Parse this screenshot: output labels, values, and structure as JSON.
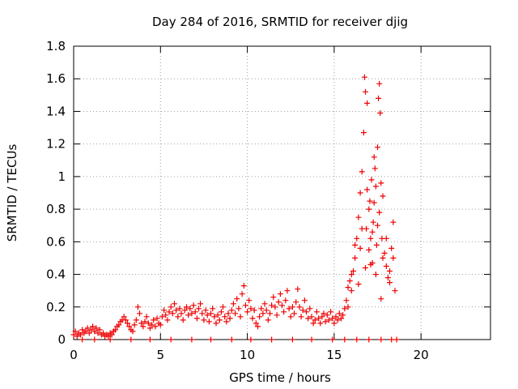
{
  "chart_data": {
    "type": "scatter",
    "title": "Day 284 of 2016, SRMTID for receiver djig",
    "xlabel": "GPS time / hours",
    "ylabel": "SRMTID / TECUs",
    "xlim": [
      0,
      24
    ],
    "ylim": [
      0,
      1.8
    ],
    "xticks": [
      0,
      5,
      10,
      15,
      20
    ],
    "yticks": [
      0,
      0.2,
      0.4,
      0.6,
      0.8,
      1,
      1.2,
      1.4,
      1.6,
      1.8
    ],
    "xtick_labels": [
      "0",
      "5",
      "10",
      "15",
      "20"
    ],
    "ytick_labels": [
      "0",
      "0.2",
      "0.4",
      "0.6",
      "0.8",
      "1",
      "1.2",
      "1.4",
      "1.6",
      "1.8"
    ],
    "grid": true,
    "marker": "+",
    "color": "#ee0000",
    "series": [
      {
        "name": "SRMTID",
        "points": [
          [
            0.0,
            0.03
          ],
          [
            0.1,
            0.05
          ],
          [
            0.2,
            0.02
          ],
          [
            0.3,
            0.04
          ],
          [
            0.4,
            0.03
          ],
          [
            0.5,
            0.06
          ],
          [
            0.6,
            0.04
          ],
          [
            0.7,
            0.05
          ],
          [
            0.8,
            0.07
          ],
          [
            0.9,
            0.04
          ],
          [
            1.0,
            0.06
          ],
          [
            1.1,
            0.08
          ],
          [
            1.2,
            0.05
          ],
          [
            1.3,
            0.07
          ],
          [
            1.4,
            0.04
          ],
          [
            1.5,
            0.06
          ],
          [
            1.6,
            0.03
          ],
          [
            1.7,
            0.04
          ],
          [
            1.8,
            0.02
          ],
          [
            1.9,
            0.03
          ],
          [
            2.0,
            0.02
          ],
          [
            2.1,
            0.04
          ],
          [
            2.2,
            0.03
          ],
          [
            2.3,
            0.05
          ],
          [
            2.4,
            0.06
          ],
          [
            2.5,
            0.08
          ],
          [
            2.6,
            0.09
          ],
          [
            2.7,
            0.11
          ],
          [
            2.8,
            0.12
          ],
          [
            2.9,
            0.14
          ],
          [
            3.0,
            0.12
          ],
          [
            3.1,
            0.1
          ],
          [
            3.2,
            0.08
          ],
          [
            3.3,
            0.06
          ],
          [
            3.4,
            0.05
          ],
          [
            3.5,
            0.09
          ],
          [
            3.6,
            0.12
          ],
          [
            3.7,
            0.2
          ],
          [
            3.8,
            0.16
          ],
          [
            3.9,
            0.1
          ],
          [
            4.0,
            0.08
          ],
          [
            4.1,
            0.11
          ],
          [
            4.2,
            0.14
          ],
          [
            4.3,
            0.1
          ],
          [
            4.4,
            0.07
          ],
          [
            4.5,
            0.09
          ],
          [
            4.6,
            0.12
          ],
          [
            4.7,
            0.08
          ],
          [
            4.8,
            0.13
          ],
          [
            4.9,
            0.1
          ],
          [
            5.0,
            0.09
          ],
          [
            5.1,
            0.14
          ],
          [
            5.2,
            0.18
          ],
          [
            5.3,
            0.15
          ],
          [
            5.4,
            0.12
          ],
          [
            5.5,
            0.17
          ],
          [
            5.6,
            0.2
          ],
          [
            5.7,
            0.16
          ],
          [
            5.8,
            0.22
          ],
          [
            5.9,
            0.18
          ],
          [
            6.0,
            0.14
          ],
          [
            6.1,
            0.19
          ],
          [
            6.2,
            0.16
          ],
          [
            6.3,
            0.12
          ],
          [
            6.4,
            0.18
          ],
          [
            6.5,
            0.2
          ],
          [
            6.6,
            0.15
          ],
          [
            6.7,
            0.19
          ],
          [
            6.8,
            0.16
          ],
          [
            6.9,
            0.21
          ],
          [
            7.0,
            0.17
          ],
          [
            7.1,
            0.13
          ],
          [
            7.2,
            0.19
          ],
          [
            7.3,
            0.22
          ],
          [
            7.4,
            0.16
          ],
          [
            7.5,
            0.12
          ],
          [
            7.6,
            0.18
          ],
          [
            7.7,
            0.15
          ],
          [
            7.8,
            0.11
          ],
          [
            7.9,
            0.16
          ],
          [
            8.0,
            0.19
          ],
          [
            8.1,
            0.14
          ],
          [
            8.2,
            0.1
          ],
          [
            8.3,
            0.15
          ],
          [
            8.4,
            0.12
          ],
          [
            8.5,
            0.17
          ],
          [
            8.6,
            0.2
          ],
          [
            8.7,
            0.14
          ],
          [
            8.8,
            0.11
          ],
          [
            8.9,
            0.16
          ],
          [
            9.0,
            0.13
          ],
          [
            9.1,
            0.18
          ],
          [
            9.2,
            0.22
          ],
          [
            9.3,
            0.16
          ],
          [
            9.4,
            0.25
          ],
          [
            9.5,
            0.19
          ],
          [
            9.6,
            0.14
          ],
          [
            9.7,
            0.28
          ],
          [
            9.8,
            0.33
          ],
          [
            9.9,
            0.21
          ],
          [
            10.0,
            0.17
          ],
          [
            10.1,
            0.24
          ],
          [
            10.2,
            0.19
          ],
          [
            10.3,
            0.13
          ],
          [
            10.4,
            0.18
          ],
          [
            10.5,
            0.1
          ],
          [
            10.6,
            0.08
          ],
          [
            10.7,
            0.14
          ],
          [
            10.8,
            0.19
          ],
          [
            10.9,
            0.16
          ],
          [
            11.0,
            0.22
          ],
          [
            11.1,
            0.18
          ],
          [
            11.2,
            0.12
          ],
          [
            11.3,
            0.16
          ],
          [
            11.4,
            0.21
          ],
          [
            11.5,
            0.26
          ],
          [
            11.6,
            0.2
          ],
          [
            11.7,
            0.15
          ],
          [
            11.8,
            0.23
          ],
          [
            11.9,
            0.28
          ],
          [
            12.0,
            0.21
          ],
          [
            12.1,
            0.17
          ],
          [
            12.2,
            0.24
          ],
          [
            12.3,
            0.3
          ],
          [
            12.4,
            0.19
          ],
          [
            12.5,
            0.14
          ],
          [
            12.6,
            0.2
          ],
          [
            12.7,
            0.16
          ],
          [
            12.8,
            0.23
          ],
          [
            12.9,
            0.31
          ],
          [
            13.0,
            0.2
          ],
          [
            13.1,
            0.14
          ],
          [
            13.2,
            0.18
          ],
          [
            13.3,
            0.24
          ],
          [
            13.4,
            0.17
          ],
          [
            13.5,
            0.13
          ],
          [
            13.6,
            0.19
          ],
          [
            13.7,
            0.14
          ],
          [
            13.8,
            0.1
          ],
          [
            13.9,
            0.12
          ],
          [
            14.0,
            0.17
          ],
          [
            14.1,
            0.13
          ],
          [
            14.2,
            0.1
          ],
          [
            14.3,
            0.14
          ],
          [
            14.4,
            0.16
          ],
          [
            14.5,
            0.11
          ],
          [
            14.6,
            0.15
          ],
          [
            14.7,
            0.12
          ],
          [
            14.8,
            0.17
          ],
          [
            14.9,
            0.13
          ],
          [
            15.0,
            0.1
          ],
          [
            15.1,
            0.14
          ],
          [
            15.2,
            0.12
          ],
          [
            15.3,
            0.16
          ],
          [
            15.4,
            0.13
          ],
          [
            15.5,
            0.15
          ],
          [
            15.6,
            0.19
          ],
          [
            15.7,
            0.24
          ],
          [
            15.8,
            0.32
          ],
          [
            15.9,
            0.36
          ],
          [
            16.0,
            0.3
          ],
          [
            16.1,
            0.42
          ],
          [
            16.2,
            0.5
          ],
          [
            16.3,
            0.62
          ],
          [
            16.4,
            0.75
          ],
          [
            16.5,
            0.9
          ],
          [
            16.6,
            1.03
          ],
          [
            16.7,
            1.27
          ],
          [
            16.75,
            1.61
          ],
          [
            16.8,
            1.52
          ],
          [
            16.85,
            0.68
          ],
          [
            16.9,
            1.45
          ],
          [
            17.0,
            0.55
          ],
          [
            17.05,
            0.85
          ],
          [
            17.1,
            0.62
          ],
          [
            17.15,
            0.98
          ],
          [
            17.2,
            0.47
          ],
          [
            17.25,
            0.72
          ],
          [
            17.3,
            1.12
          ],
          [
            17.35,
            1.05
          ],
          [
            17.4,
            0.94
          ],
          [
            17.45,
            0.58
          ],
          [
            17.5,
            1.18
          ],
          [
            17.55,
            1.48
          ],
          [
            17.6,
            1.57
          ],
          [
            17.65,
            1.39
          ],
          [
            17.7,
            0.25
          ],
          [
            17.75,
            0.62
          ],
          [
            17.8,
            0.88
          ],
          [
            17.9,
            0.53
          ],
          [
            18.0,
            0.45
          ],
          [
            18.1,
            0.38
          ],
          [
            18.2,
            0.35
          ],
          [
            18.3,
            0.56
          ],
          [
            18.4,
            0.72
          ],
          [
            18.5,
            0.3
          ],
          [
            15.8,
            0.2
          ],
          [
            16.0,
            0.4
          ],
          [
            16.2,
            0.58
          ],
          [
            16.4,
            0.34
          ],
          [
            16.6,
            0.68
          ],
          [
            16.8,
            0.44
          ],
          [
            17.0,
            0.8
          ],
          [
            17.2,
            0.66
          ],
          [
            17.4,
            0.4
          ],
          [
            17.6,
            0.78
          ],
          [
            17.8,
            0.5
          ],
          [
            18.0,
            0.62
          ],
          [
            18.2,
            0.42
          ],
          [
            18.4,
            0.5
          ],
          [
            16.5,
            0.56
          ],
          [
            16.9,
            0.92
          ],
          [
            17.1,
            0.46
          ],
          [
            17.3,
            0.84
          ],
          [
            17.5,
            0.7
          ],
          [
            17.7,
            0.96
          ],
          [
            0.5,
            0.0
          ],
          [
            1.2,
            0.0
          ],
          [
            2.1,
            0.0
          ],
          [
            3.3,
            0.0
          ],
          [
            4.4,
            0.0
          ],
          [
            5.6,
            0.0
          ],
          [
            6.8,
            0.0
          ],
          [
            7.9,
            0.0
          ],
          [
            9.1,
            0.0
          ],
          [
            10.2,
            0.0
          ],
          [
            11.4,
            0.0
          ],
          [
            12.6,
            0.0
          ],
          [
            13.7,
            0.0
          ],
          [
            14.9,
            0.0
          ],
          [
            15.6,
            0.0
          ],
          [
            16.3,
            0.0
          ],
          [
            17.0,
            0.0
          ],
          [
            17.7,
            0.0
          ],
          [
            18.3,
            0.0
          ],
          [
            18.6,
            0.0
          ]
        ]
      }
    ]
  }
}
